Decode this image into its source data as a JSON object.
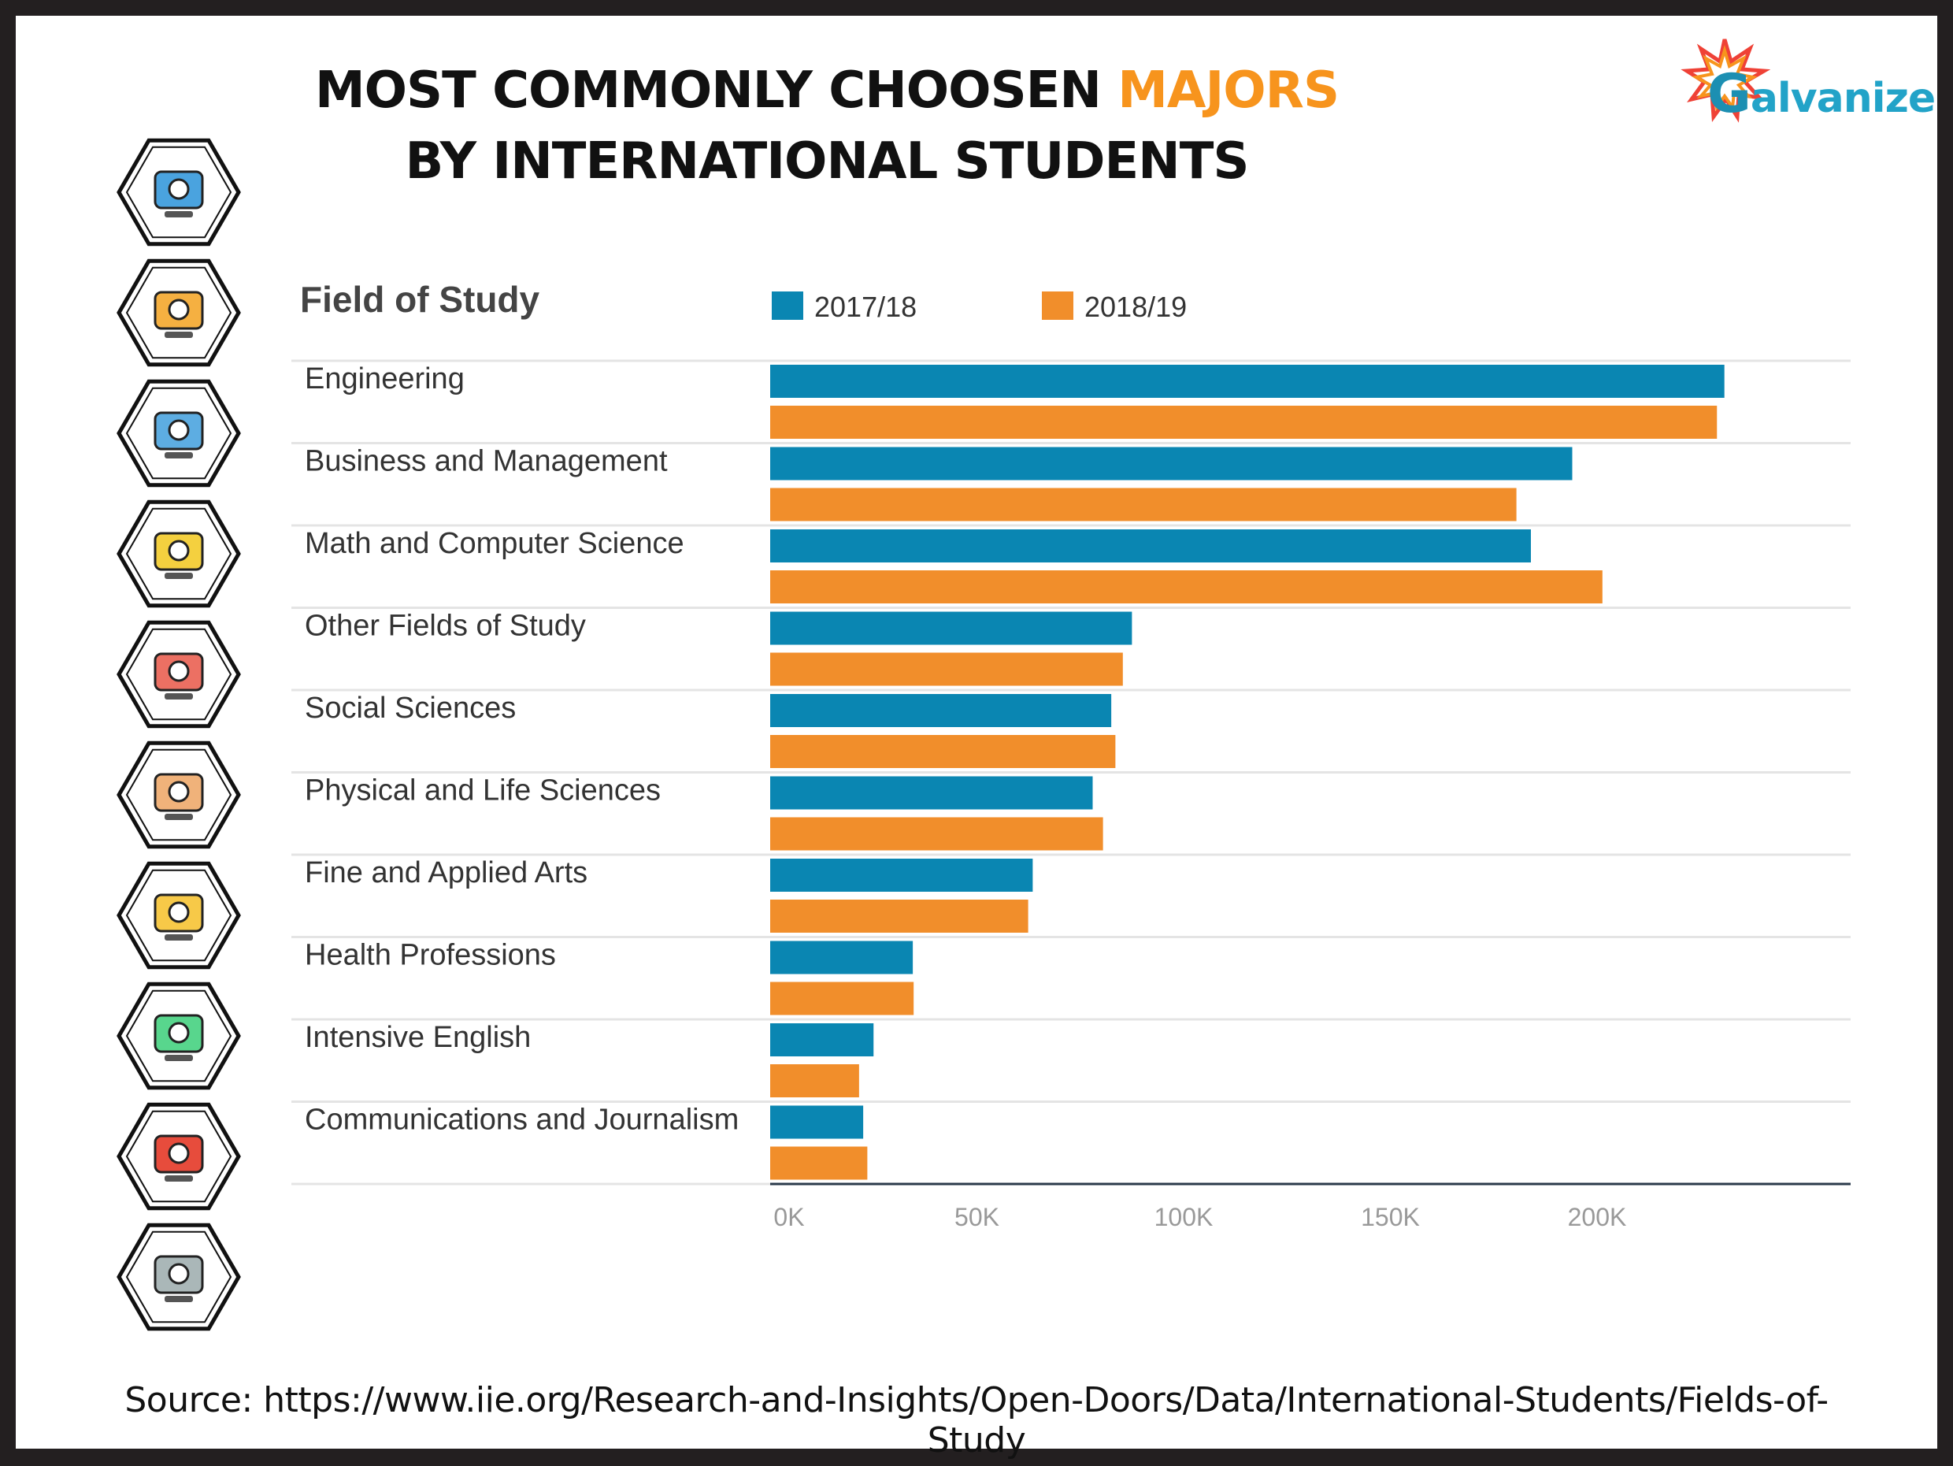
{
  "title": {
    "line1_prefix": "MOST COMMONLY CHOOSEN ",
    "line1_accent": "MAJORS",
    "line2": "BY INTERNATIONAL STUDENTS"
  },
  "logo": {
    "initial": "G",
    "rest": "alvanize"
  },
  "source": "Source: https://www.iie.org/Research-and-Insights/Open-Doors/Data/International-Students/Fields-of-Study",
  "colors": {
    "series_2017": "#0a86b2",
    "series_2018": "#f18e2b",
    "accent": "#f7941d"
  },
  "icons": [
    "cloud-database-laptop-icon",
    "money-bag-hand-icon",
    "computer-design-monitor-icon",
    "student-reading-book-icon",
    "university-globe-icon",
    "cells-biology-icon",
    "bust-statue-art-icon",
    "medical-plant-icon",
    "language-book-icon",
    "journalist-person-icon"
  ],
  "chart_data": {
    "type": "bar",
    "orientation": "horizontal",
    "category_header": "Field of Study",
    "categories": [
      "Engineering",
      "Business and Management",
      "Math and Computer Science",
      "Other Fields of Study",
      "Social Sciences",
      "Physical and Life Sciences",
      "Fine and Applied Arts",
      "Health Professions",
      "Intensive English",
      "Communications and Journalism"
    ],
    "series": [
      {
        "name": "2017/18",
        "color": "#0a86b2",
        "values": [
          230800,
          194000,
          184000,
          87500,
          82500,
          78000,
          63500,
          34500,
          25000,
          22500
        ]
      },
      {
        "name": "2018/19",
        "color": "#f18e2b",
        "values": [
          229000,
          180500,
          201300,
          85300,
          83500,
          80500,
          62400,
          34700,
          21500,
          23500
        ]
      }
    ],
    "xlim": [
      0,
      240000
    ],
    "xticks": [
      0,
      50000,
      100000,
      150000,
      200000
    ],
    "xtick_labels": [
      "0K",
      "50K",
      "100K",
      "150K",
      "200K"
    ],
    "legend_position": "top",
    "grid": "horizontal row separators"
  }
}
